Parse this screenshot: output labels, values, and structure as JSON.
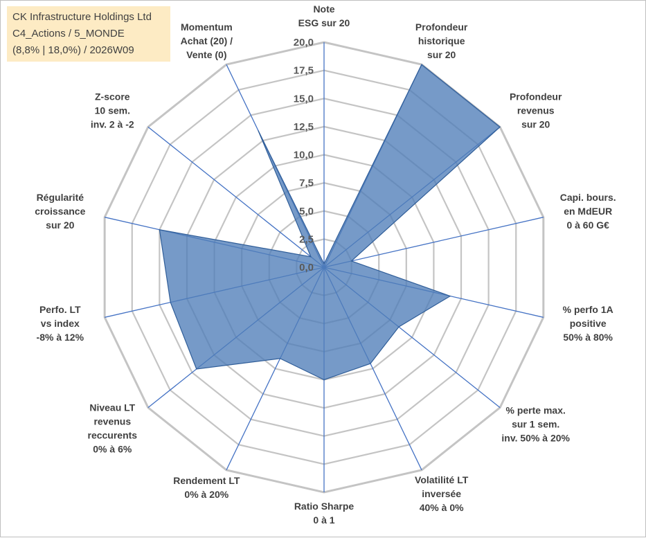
{
  "title_box": {
    "line1": "CK Infrastructure Holdings Ltd",
    "line2": "C4_Actions / 5_MONDE",
    "line3": "(8,8% | 18,0%) / 2026W09",
    "background": "#fdebc4"
  },
  "chart_data": {
    "type": "radar",
    "title": "CK Infrastructure Holdings Ltd",
    "rmin": 0,
    "rmax": 20,
    "ticks": [
      "0,0",
      "2,5",
      "5,0",
      "7,5",
      "10,0",
      "12,5",
      "15,0",
      "17,5",
      "20,0"
    ],
    "tick_values": [
      0,
      2.5,
      5,
      7.5,
      10,
      12.5,
      15,
      17.5,
      20
    ],
    "grid": true,
    "axes": [
      {
        "label": [
          "Note",
          "ESG sur 20"
        ],
        "value": 0.3
      },
      {
        "label": [
          "Profondeur",
          "historique",
          "sur 20"
        ],
        "value": 20
      },
      {
        "label": [
          "Profondeur",
          "revenus",
          "sur 20"
        ],
        "value": 20
      },
      {
        "label": [
          "Capi. bours.",
          "en MdEUR",
          "0 à 60 G€"
        ],
        "value": 2.5
      },
      {
        "label": [
          "% perfo 1A",
          "positive",
          "50% à 80%"
        ],
        "value": 11.5
      },
      {
        "label": [
          "% perte max.",
          "sur 1 sem.",
          "inv. 50% à 20%"
        ],
        "value": 8.5
      },
      {
        "label": [
          "Volatilité LT",
          "inversée",
          "40% à 0%"
        ],
        "value": 9.5
      },
      {
        "label": [
          "Ratio Sharpe",
          "0 à 1"
        ],
        "value": 10
      },
      {
        "label": [
          "Rendement LT",
          "0% à 20%"
        ],
        "value": 9
      },
      {
        "label": [
          "Niveau LT",
          "revenus",
          "reccurents",
          "0% à 6%"
        ],
        "value": 14.5
      },
      {
        "label": [
          "Perfo. LT",
          "vs index",
          "-8% à 12%"
        ],
        "value": 14
      },
      {
        "label": [
          "Régularité",
          "croissance",
          "sur 20"
        ],
        "value": 15
      },
      {
        "label": [
          "Z-score",
          "10 sem.",
          "inv. 2 à -2"
        ],
        "value": 1.5
      },
      {
        "label": [
          "Momentum",
          "Achat (20) /",
          "Vente (0)"
        ],
        "value": 13.5
      }
    ],
    "series": [
      {
        "name": "CK Infrastructure Holdings Ltd",
        "fill": "#4f7eb8",
        "stroke": "#2f5d98"
      }
    ],
    "colors": {
      "grid": "#c4c4c4",
      "spoke": "#4472c4",
      "text": "#404040"
    }
  }
}
